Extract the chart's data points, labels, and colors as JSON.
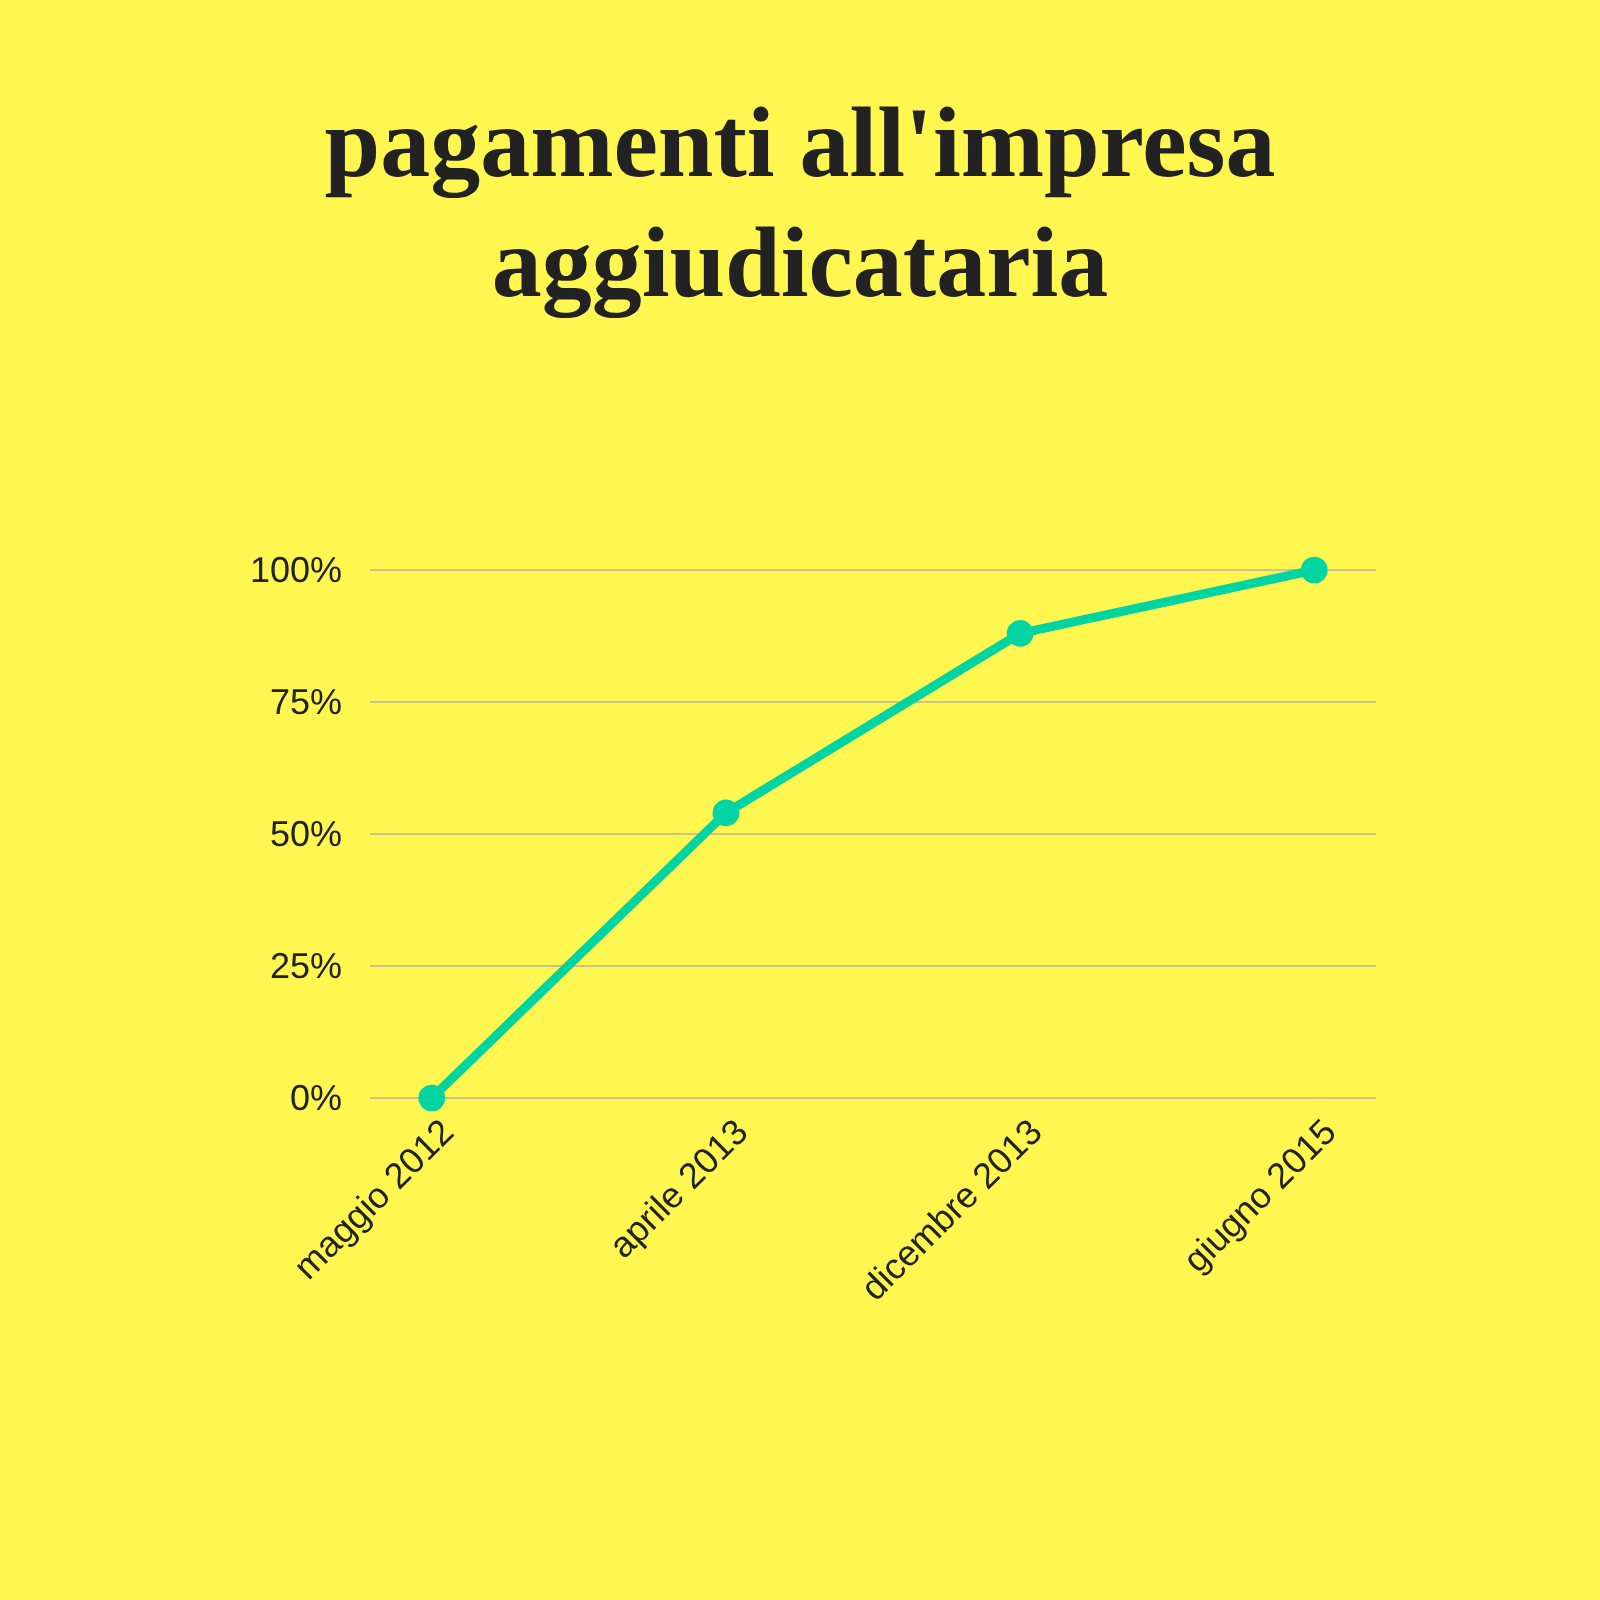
{
  "chart_data": {
    "type": "line",
    "title": "pagamenti all'impresa aggiudicataria",
    "categories": [
      "maggio 2012",
      "aprile 2013",
      "dicembre 2013",
      "giugno 2015"
    ],
    "series": [
      {
        "color": "#00d4a2",
        "values": [
          0,
          54,
          88,
          100
        ]
      }
    ],
    "ylim": [
      0,
      100
    ],
    "yticks": [
      {
        "value": 0,
        "label": "0%"
      },
      {
        "value": 25,
        "label": "25%"
      },
      {
        "value": 50,
        "label": "50%"
      },
      {
        "value": 75,
        "label": "75%"
      },
      {
        "value": 100,
        "label": "100%"
      }
    ],
    "grid": "y",
    "marker": "circle",
    "line_style": "solid"
  }
}
